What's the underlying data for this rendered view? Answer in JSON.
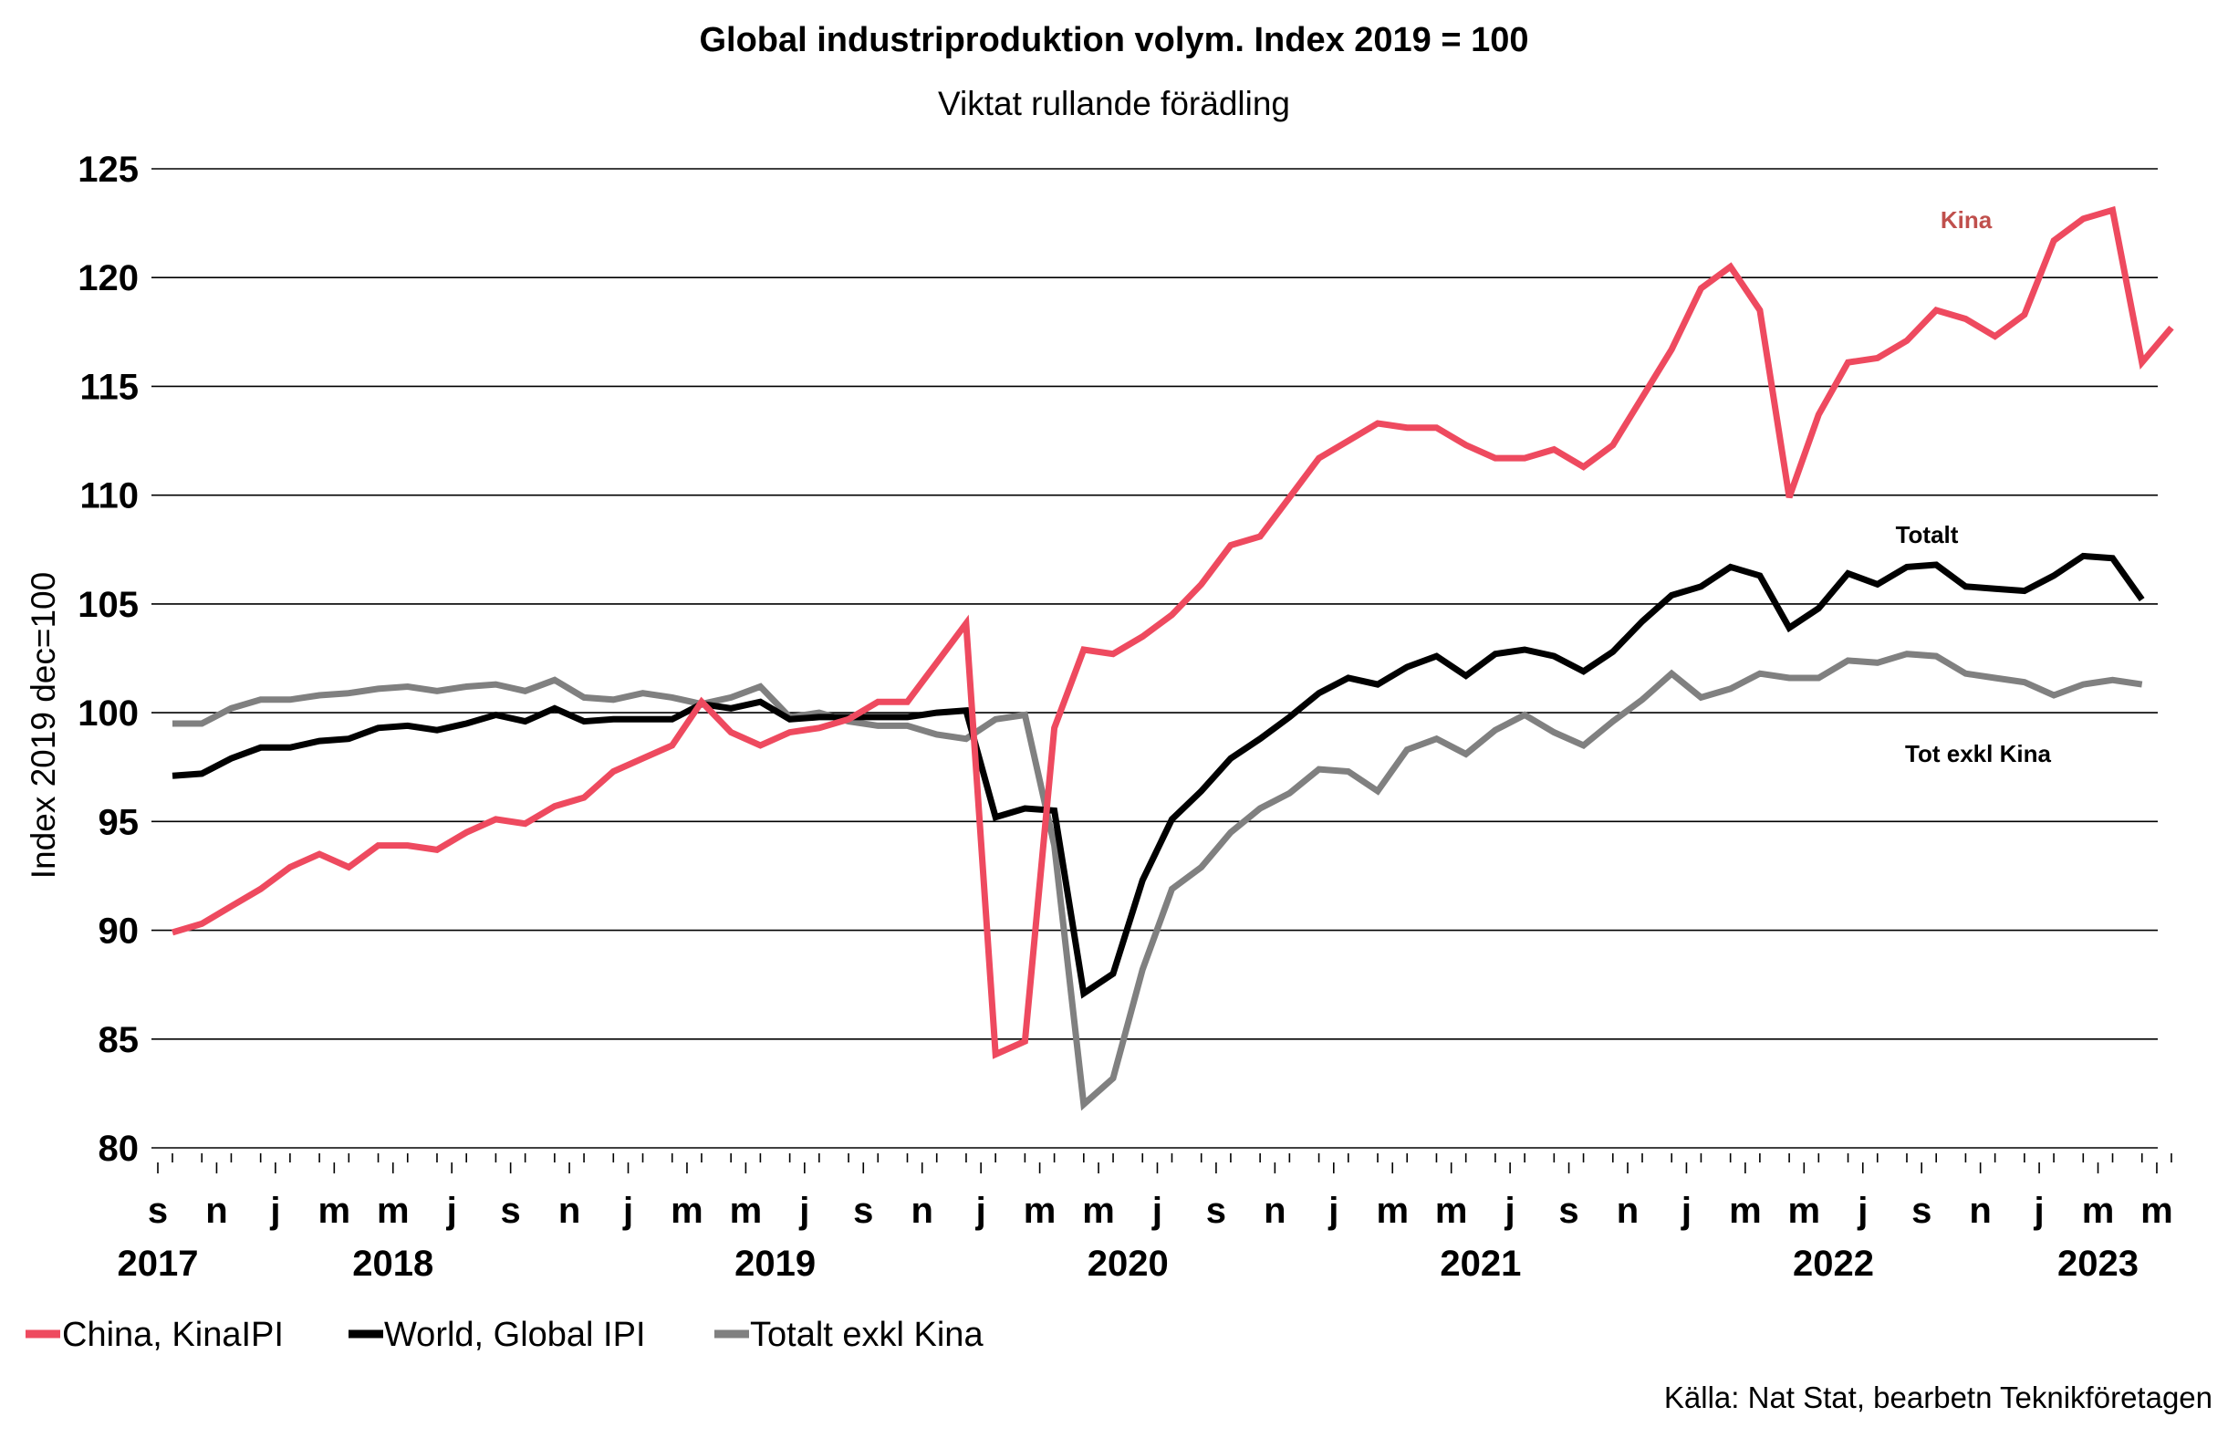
{
  "chart_data": {
    "type": "line",
    "title": "Global industriproduktion volym. Index 2019 = 100",
    "subtitle": "Viktat rullande förädling",
    "ylabel": "Index 2019 dec=100",
    "ylim": [
      80,
      125
    ],
    "yticks": [
      80,
      85,
      90,
      95,
      100,
      105,
      110,
      115,
      120,
      125
    ],
    "grid": true,
    "legend_position": "bottom-left",
    "x_start": "2017-09",
    "x_end": "2023-05",
    "month_tick_labels": [
      "s",
      "n",
      "j",
      "m",
      "m",
      "j",
      "s",
      "n",
      "j",
      "m",
      "m",
      "j",
      "s",
      "n",
      "j",
      "m",
      "m",
      "j",
      "s",
      "n",
      "j",
      "m",
      "m",
      "j",
      "s",
      "n",
      "j",
      "m",
      "m",
      "j",
      "s",
      "n",
      "j",
      "m",
      "m"
    ],
    "year_labels": [
      {
        "label": "2017",
        "month": "2017-09"
      },
      {
        "label": "2018",
        "month": "2018-05"
      },
      {
        "label": "2019",
        "month": "2019-06"
      },
      {
        "label": "2020",
        "month": "2020-06"
      },
      {
        "label": "2021",
        "month": "2021-06"
      },
      {
        "label": "2022",
        "month": "2022-06"
      },
      {
        "label": "2023",
        "month": "2023-03"
      }
    ],
    "series": [
      {
        "name": "China, KinaIPI",
        "color": "#ee4a5f",
        "values": [
          89.9,
          90.3,
          91.1,
          91.9,
          92.9,
          93.5,
          92.9,
          93.9,
          93.9,
          93.7,
          94.5,
          95.1,
          94.9,
          95.7,
          96.1,
          97.3,
          97.9,
          98.5,
          100.5,
          99.1,
          98.5,
          99.1,
          99.3,
          99.7,
          100.5,
          100.5,
          102.3,
          104.1,
          84.3,
          84.9,
          99.3,
          102.9,
          102.7,
          103.5,
          104.5,
          105.9,
          107.7,
          108.1,
          109.9,
          111.7,
          112.5,
          113.3,
          113.1,
          113.1,
          112.3,
          111.7,
          111.7,
          112.1,
          111.3,
          112.3,
          114.5,
          116.7,
          119.5,
          120.5,
          118.5,
          109.9,
          113.7,
          116.1,
          116.3,
          117.1,
          118.5,
          118.1,
          117.3,
          118.3,
          121.7,
          122.7,
          123.1,
          116.1,
          117.7
        ]
      },
      {
        "name": "World, Global IPI",
        "color": "#000000",
        "values": [
          97.1,
          97.2,
          97.9,
          98.4,
          98.4,
          98.7,
          98.8,
          99.3,
          99.4,
          99.2,
          99.5,
          99.9,
          99.6,
          100.2,
          99.6,
          99.7,
          99.7,
          99.7,
          100.4,
          100.2,
          100.5,
          99.7,
          99.8,
          99.8,
          99.8,
          99.8,
          100.0,
          100.1,
          95.2,
          95.6,
          95.5,
          87.1,
          88.0,
          92.3,
          95.1,
          96.4,
          97.9,
          98.8,
          99.8,
          100.9,
          101.6,
          101.3,
          102.1,
          102.6,
          101.7,
          102.7,
          102.9,
          102.6,
          101.9,
          102.8,
          104.2,
          105.4,
          105.8,
          106.7,
          106.3,
          103.9,
          104.8,
          106.4,
          105.9,
          106.7,
          106.8,
          105.8,
          105.7,
          105.6,
          106.3,
          107.2,
          107.1,
          105.2
        ]
      },
      {
        "name": "Totalt exkl Kina",
        "color": "#808080",
        "values": [
          99.5,
          99.5,
          100.2,
          100.6,
          100.6,
          100.8,
          100.9,
          101.1,
          101.2,
          101.0,
          101.2,
          101.3,
          101.0,
          101.5,
          100.7,
          100.6,
          100.9,
          100.7,
          100.4,
          100.7,
          101.2,
          99.8,
          100.0,
          99.6,
          99.4,
          99.4,
          99.0,
          98.8,
          99.7,
          99.9,
          93.9,
          82.0,
          83.2,
          88.2,
          91.9,
          92.9,
          94.5,
          95.6,
          96.3,
          97.4,
          97.3,
          96.4,
          98.3,
          98.8,
          98.1,
          99.2,
          99.9,
          99.1,
          98.5,
          99.6,
          100.6,
          101.8,
          100.7,
          101.1,
          101.8,
          101.6,
          101.6,
          102.4,
          102.3,
          102.7,
          102.6,
          101.8,
          101.6,
          101.4,
          100.8,
          101.3,
          101.5,
          101.3
        ]
      }
    ],
    "annotations": [
      {
        "text": "Kina",
        "color": "#c0504d"
      },
      {
        "text": "Totalt",
        "color": "#000000"
      },
      {
        "text": "Tot exkl Kina",
        "color": "#000000"
      }
    ],
    "source": "Källa: Nat Stat, bearbetn Teknikföretagen"
  }
}
